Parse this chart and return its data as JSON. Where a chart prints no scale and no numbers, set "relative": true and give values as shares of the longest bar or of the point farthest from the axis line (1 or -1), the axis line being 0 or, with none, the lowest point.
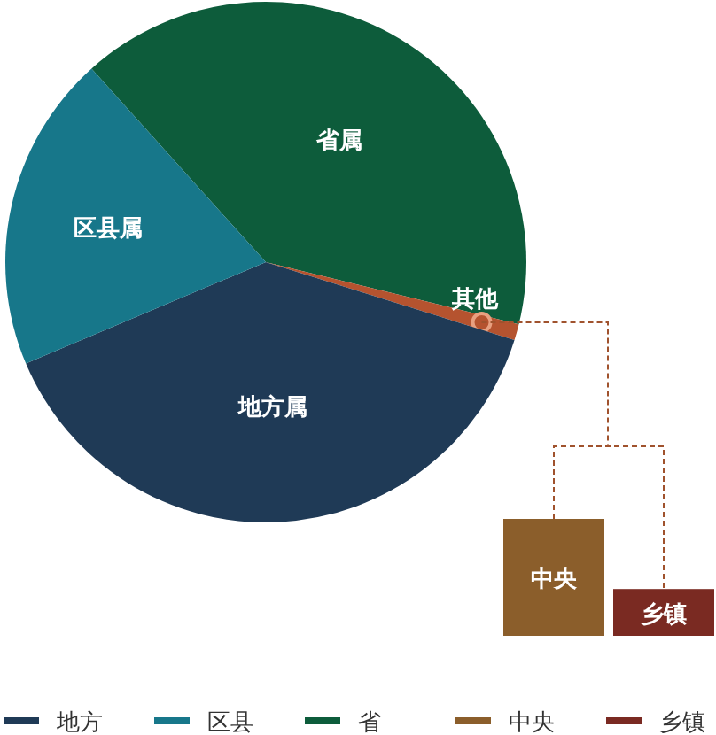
{
  "chart_data": [
    {
      "type": "pie",
      "categories": [
        "省属",
        "其他",
        "地方属",
        "区县属"
      ],
      "values": [
        40.5,
        1.0,
        38.8,
        19.7
      ],
      "colors": [
        "#0d5c3b",
        "#b5532f",
        "#1f3a56",
        "#17778a"
      ],
      "annotations": [
        "地方",
        "区县",
        "省"
      ]
    },
    {
      "type": "bar",
      "relative": true,
      "categories": [
        "中央",
        "乡镇"
      ],
      "series": [
        {
          "name": "中央",
          "color": "#8b5e2b",
          "values": [
            1,
            null
          ]
        },
        {
          "name": "乡镇",
          "color": "#7a2a22",
          "values": [
            null,
            0.4
          ]
        }
      ],
      "legend": "bottom"
    }
  ]
}
